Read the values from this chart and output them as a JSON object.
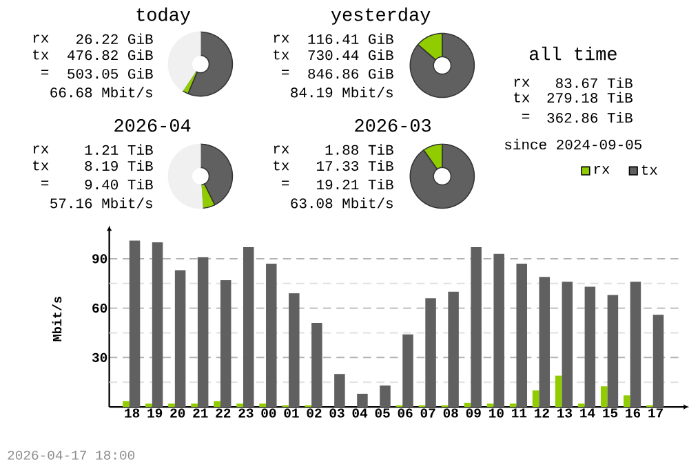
{
  "chart_data": [
    {
      "type": "donut",
      "title": "today",
      "categories": [
        null,
        null,
        null
      ],
      "values": [
        56.3,
        3.1,
        40.6
      ],
      "colors": [
        "#606060",
        "#90cc00",
        "#f0f0f0"
      ],
      "annotations": [
        "rx",
        "26.22 GiB",
        "tx",
        "476.82 GiB",
        "=",
        "503.05 GiB",
        "66.68 Mbit/s"
      ]
    },
    {
      "type": "donut",
      "title": "yesterday",
      "categories": [
        null,
        null
      ],
      "values": [
        86.3,
        13.7
      ],
      "colors": [
        "#606060",
        "#90cc00"
      ],
      "annotations": [
        "rx",
        "116.41 GiB",
        "tx",
        "730.44 GiB",
        "=",
        "846.86 GiB",
        "84.19 Mbit/s"
      ]
    },
    {
      "type": "donut",
      "title": "2026-04",
      "categories": [
        null,
        null,
        null
      ],
      "values": [
        42.6,
        6.3,
        51.1
      ],
      "colors": [
        "#606060",
        "#90cc00",
        "#f0f0f0"
      ],
      "annotations": [
        "rx",
        "1.21 TiB",
        "tx",
        "8.19 TiB",
        "=",
        "9.40 TiB",
        "57.16 Mbit/s"
      ]
    },
    {
      "type": "donut",
      "title": "2026-03",
      "categories": [
        null,
        null
      ],
      "values": [
        90.2,
        9.8
      ],
      "colors": [
        "#606060",
        "#90cc00"
      ],
      "annotations": [
        "rx",
        "1.88 TiB",
        "tx",
        "17.33 TiB",
        "=",
        "19.21 TiB",
        "63.08 Mbit/s"
      ]
    },
    {
      "type": "other",
      "title": "all time",
      "annotations": [
        "rx",
        "83.67 TiB",
        "tx",
        "279.18 TiB",
        "=",
        "362.86 TiB",
        "since 2024-09-05"
      ]
    },
    {
      "type": "bar",
      "ylabel": "Mbit/s",
      "categories": [
        "18",
        "19",
        "20",
        "21",
        "22",
        "23",
        "00",
        "01",
        "02",
        "03",
        "04",
        "05",
        "06",
        "07",
        "08",
        "09",
        "10",
        "11",
        "12",
        "13",
        "14",
        "15",
        "16",
        "17"
      ],
      "series": [
        {
          "name": "rx",
          "color": "#90cc00",
          "values": [
            3.5,
            2,
            2,
            2,
            3.5,
            2,
            2,
            1,
            1,
            0,
            0,
            0,
            1,
            1,
            1,
            2.5,
            2,
            2,
            10,
            19,
            2,
            12.5,
            7,
            1
          ]
        },
        {
          "name": "tx",
          "color": "#606060",
          "values": [
            101,
            100,
            83,
            91,
            77,
            97,
            87,
            69,
            51,
            20,
            8,
            13,
            44,
            66,
            70,
            97,
            93,
            87,
            79,
            76,
            73,
            68,
            76,
            56
          ]
        }
      ],
      "ylim": [
        0,
        107
      ],
      "yticks": [
        {
          "value": 15,
          "label": null
        },
        30,
        {
          "value": 45,
          "label": null
        },
        60,
        {
          "value": 75,
          "label": null
        },
        90
      ],
      "grid": "y",
      "legend": "top right",
      "annotations": [
        "2026-04-17 18:00"
      ]
    }
  ]
}
